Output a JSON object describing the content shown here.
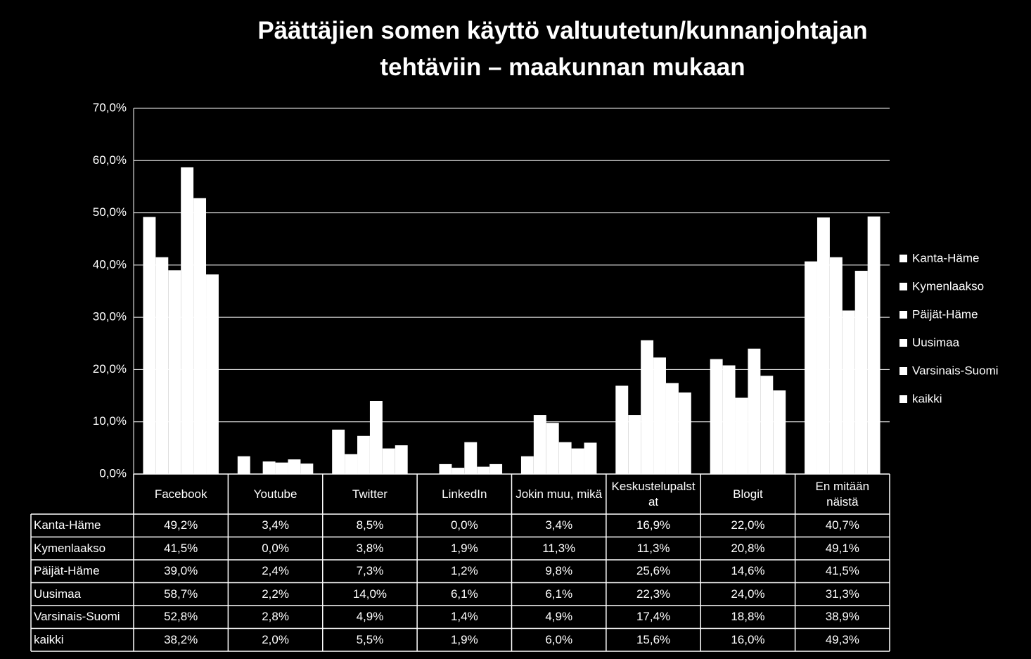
{
  "chart_data": {
    "type": "bar",
    "title": "Päättäjien somen käyttö valtuutetun/kunnanjohtajan tehtäviin – maakunnan mukaan",
    "categories": [
      "Facebook",
      "Youtube",
      "Twitter",
      "LinkedIn",
      "Jokin muu, mikä",
      "Keskustelupalstat",
      "Blogit",
      "En mitään näistä"
    ],
    "series": [
      {
        "name": "Kanta-Häme",
        "color": "#ffffff",
        "values": [
          49.2,
          3.4,
          8.5,
          0.0,
          3.4,
          16.9,
          22.0,
          40.7
        ],
        "value_labels": [
          "49,2%",
          "3,4%",
          "8,5%",
          "0,0%",
          "3,4%",
          "16,9%",
          "22,0%",
          "40,7%"
        ]
      },
      {
        "name": "Kymenlaakso",
        "color": "#ffffff",
        "values": [
          41.5,
          0.0,
          3.8,
          1.9,
          11.3,
          11.3,
          20.8,
          49.1
        ],
        "value_labels": [
          "41,5%",
          "0,0%",
          "3,8%",
          "1,9%",
          "11,3%",
          "11,3%",
          "20,8%",
          "49,1%"
        ]
      },
      {
        "name": "Päijät-Häme",
        "color": "#ffffff",
        "values": [
          39.0,
          2.4,
          7.3,
          1.2,
          9.8,
          25.6,
          14.6,
          41.5
        ],
        "value_labels": [
          "39,0%",
          "2,4%",
          "7,3%",
          "1,2%",
          "9,8%",
          "25,6%",
          "14,6%",
          "41,5%"
        ]
      },
      {
        "name": "Uusimaa",
        "color": "#ffffff",
        "values": [
          58.7,
          2.2,
          14.0,
          6.1,
          6.1,
          22.3,
          24.0,
          31.3
        ],
        "value_labels": [
          "58,7%",
          "2,2%",
          "14,0%",
          "6,1%",
          "6,1%",
          "22,3%",
          "24,0%",
          "31,3%"
        ]
      },
      {
        "name": "Varsinais-Suomi",
        "color": "#ffffff",
        "values": [
          52.8,
          2.8,
          4.9,
          1.4,
          4.9,
          17.4,
          18.8,
          38.9
        ],
        "value_labels": [
          "52,8%",
          "2,8%",
          "4,9%",
          "1,4%",
          "4,9%",
          "17,4%",
          "18,8%",
          "38,9%"
        ]
      },
      {
        "name": "kaikki",
        "color": "#ffffff",
        "values": [
          38.2,
          2.0,
          5.5,
          1.9,
          6.0,
          15.6,
          16.0,
          49.3
        ],
        "value_labels": [
          "38,2%",
          "2,0%",
          "5,5%",
          "1,9%",
          "6,0%",
          "15,6%",
          "16,0%",
          "49,3%"
        ]
      }
    ],
    "ylim": [
      0,
      70
    ],
    "yticks": [
      {
        "value": 0,
        "label": "0,0%"
      },
      {
        "value": 10,
        "label": "10,0%"
      },
      {
        "value": 20,
        "label": "20,0%"
      },
      {
        "value": 30,
        "label": "30,0%"
      },
      {
        "value": 40,
        "label": "40,0%"
      },
      {
        "value": 50,
        "label": "50,0%"
      },
      {
        "value": 60,
        "label": "60,0%"
      },
      {
        "value": 70,
        "label": "70,0%"
      }
    ],
    "grid": true,
    "legend": "right"
  }
}
